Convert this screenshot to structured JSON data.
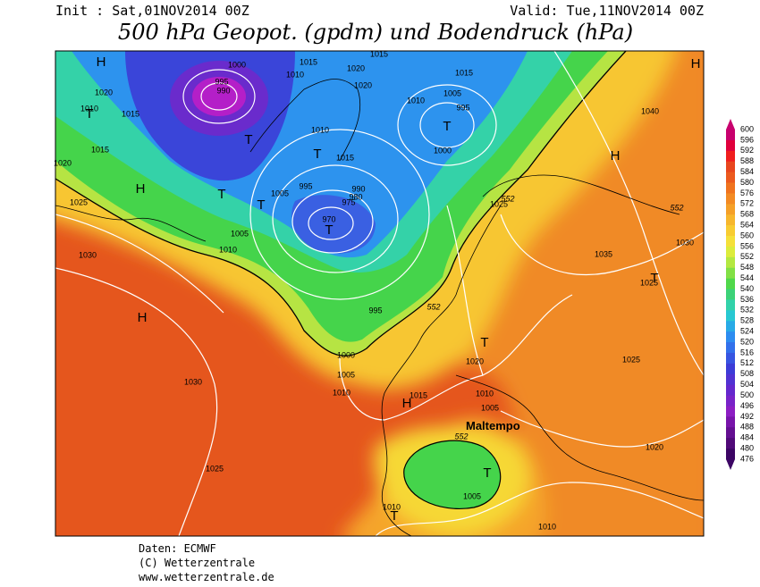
{
  "header": {
    "init": "Init : Sat,01NOV2014 00Z",
    "valid": "Valid: Tue,11NOV2014 00Z",
    "title": "500 hPa Geopot. (gpdm) und Bodendruck (hPa)"
  },
  "map": {
    "pressure_centers": [
      "H",
      "T",
      "H",
      "T",
      "T",
      "T",
      "T",
      "T",
      "T",
      "H",
      "H",
      "H",
      "T",
      "H",
      "T",
      "T",
      "T"
    ],
    "isobar_labels": [
      "1020",
      "1015",
      "1010",
      "1015",
      "1020",
      "1025",
      "1030",
      "1005",
      "1010",
      "1005",
      "995",
      "1000",
      "995",
      "990",
      "1010",
      "1015",
      "1020",
      "1020",
      "1015",
      "1010",
      "1005",
      "995",
      "1015",
      "1000",
      "1010",
      "1015",
      "990",
      "980",
      "975",
      "970",
      "995",
      "1000",
      "1005",
      "1010",
      "1015",
      "1020",
      "1010",
      "1005",
      "1025",
      "1030",
      "1035",
      "1025",
      "1025",
      "1020",
      "1010",
      "1005",
      "1010",
      "1030",
      "1025",
      "1040"
    ],
    "geopotential_labels": [
      "552",
      "552",
      "552",
      "552"
    ],
    "annotation": "Maltempo"
  },
  "colorbar": {
    "labels": [
      600,
      596,
      592,
      588,
      584,
      580,
      576,
      572,
      568,
      564,
      560,
      556,
      552,
      548,
      544,
      540,
      536,
      532,
      528,
      524,
      520,
      516,
      512,
      508,
      504,
      500,
      496,
      492,
      488,
      484,
      480,
      476
    ],
    "colors": [
      "#c8006e",
      "#e0003c",
      "#f01e1e",
      "#e8461e",
      "#ec5a1e",
      "#f0731e",
      "#f38a23",
      "#f5a028",
      "#f7b72d",
      "#f8cc32",
      "#f5e03a",
      "#dcec3c",
      "#b4e841",
      "#82e046",
      "#50d84b",
      "#3cd278",
      "#32d2aa",
      "#28c8d2",
      "#28aae6",
      "#2d8cf0",
      "#3270eb",
      "#3755e1",
      "#3c3cd7",
      "#5032d2",
      "#6428cd",
      "#7823c8",
      "#8c1ec3",
      "#7814aa",
      "#640f91",
      "#500a78",
      "#3c0564"
    ]
  },
  "footer": {
    "source": "Daten: ECMWF",
    "copyright": "(C) Wetterzentrale",
    "url": "www.wetterzentrale.de"
  }
}
